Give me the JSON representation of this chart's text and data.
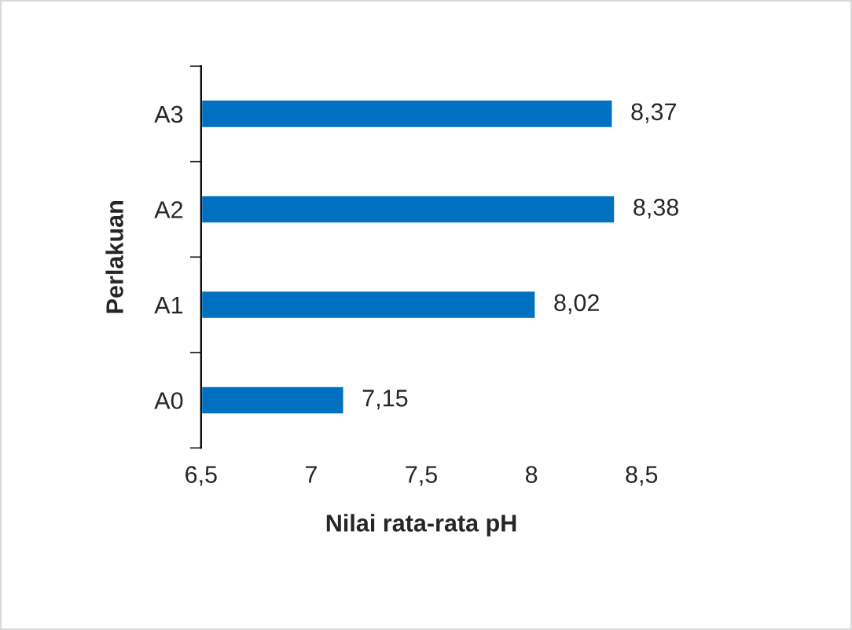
{
  "chart_data": {
    "type": "bar",
    "orientation": "horizontal",
    "xlabel": "Nilai rata-rata pH",
    "ylabel": "Perlakuan",
    "categories": [
      "A3",
      "A2",
      "A1",
      "A0"
    ],
    "values": [
      8.37,
      8.38,
      8.02,
      7.15
    ],
    "color": "#0070c0",
    "value_labels": [
      "8,37",
      "8,38",
      "8,02",
      "7,15"
    ],
    "xlim": [
      6.5,
      8.5
    ],
    "xticks": [
      {
        "value": 6.5,
        "label": "6,5"
      },
      7,
      {
        "value": 7.5,
        "label": "7,5"
      },
      8,
      {
        "value": 8.5,
        "label": "8,5"
      }
    ],
    "grid": false,
    "legend": false
  }
}
